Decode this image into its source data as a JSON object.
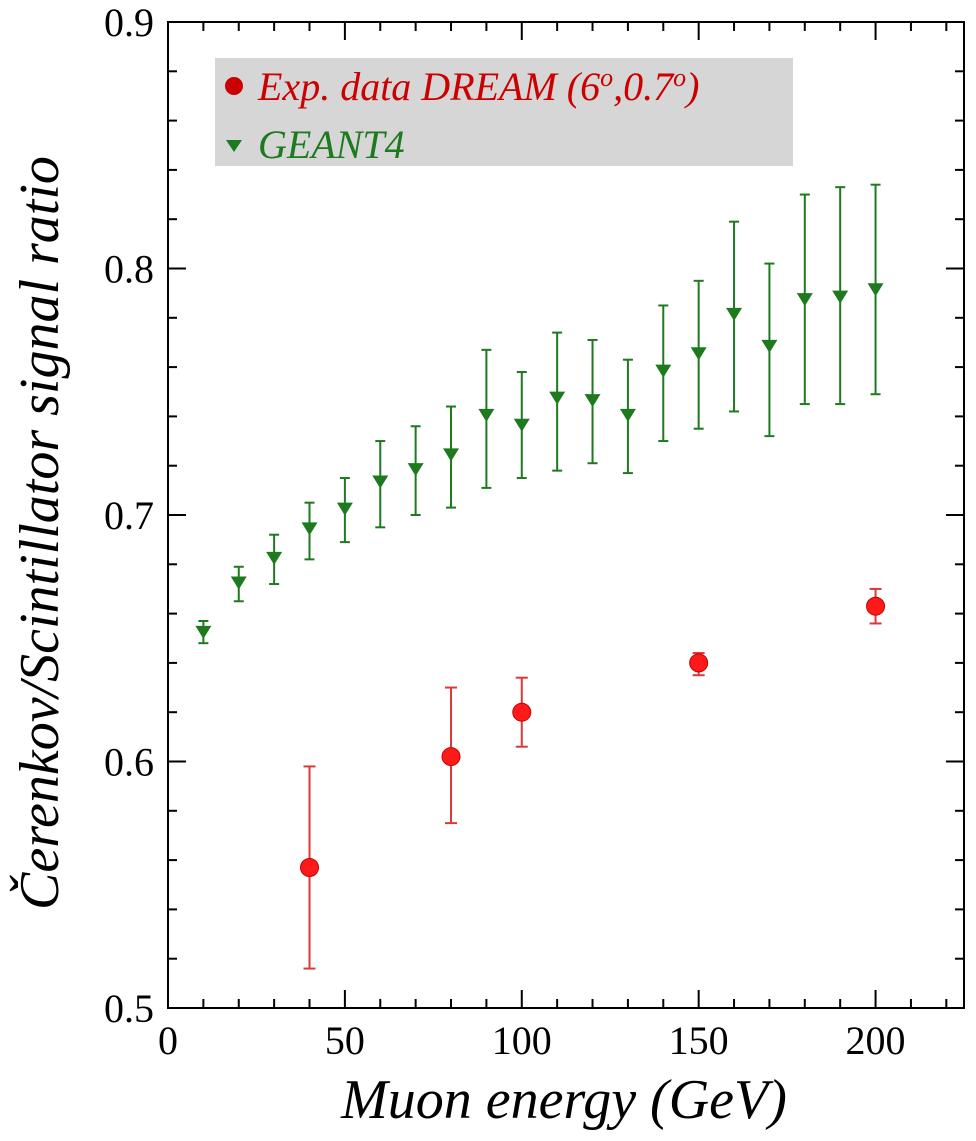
{
  "chart_data": {
    "type": "scatter",
    "xlabel": "Muon energy (GeV)",
    "ylabel": "Čerenkov/Scintillator signal ratio",
    "xlim": [
      0,
      225
    ],
    "ylim": [
      0.5,
      0.9
    ],
    "x_ticks": [
      "0",
      "50",
      "100",
      "150",
      "200"
    ],
    "y_ticks": [
      "0.5",
      "0.6",
      "0.7",
      "0.8",
      "0.9"
    ],
    "grid": false,
    "legend_position": "top-left",
    "legend_background": "#d6d6d6",
    "series": [
      {
        "name": "Exp. data DREAM (6",
        "name_sup1": "o",
        "name_mid": ",0.7",
        "name_sup2": "o",
        "name_end": ")",
        "marker": "circle",
        "color": "#ff1a1a",
        "legend_color": "#cc0000",
        "points": [
          {
            "x": 40,
            "y": 0.557,
            "err_lo": 0.516,
            "err_hi": 0.598
          },
          {
            "x": 80,
            "y": 0.602,
            "err_lo": 0.575,
            "err_hi": 0.63
          },
          {
            "x": 100,
            "y": 0.62,
            "err_lo": 0.606,
            "err_hi": 0.634
          },
          {
            "x": 150,
            "y": 0.64,
            "err_lo": 0.635,
            "err_hi": 0.644
          },
          {
            "x": 200,
            "y": 0.663,
            "err_lo": 0.656,
            "err_hi": 0.67
          }
        ]
      },
      {
        "name": "GEANT4",
        "marker": "triangle-down",
        "color": "#1e7a1e",
        "legend_color": "#1e7a1e",
        "points": [
          {
            "x": 10,
            "y": 0.653,
            "err_lo": 0.648,
            "err_hi": 0.657
          },
          {
            "x": 20,
            "y": 0.673,
            "err_lo": 0.665,
            "err_hi": 0.679
          },
          {
            "x": 30,
            "y": 0.683,
            "err_lo": 0.672,
            "err_hi": 0.692
          },
          {
            "x": 40,
            "y": 0.695,
            "err_lo": 0.682,
            "err_hi": 0.705
          },
          {
            "x": 50,
            "y": 0.703,
            "err_lo": 0.689,
            "err_hi": 0.715
          },
          {
            "x": 60,
            "y": 0.714,
            "err_lo": 0.695,
            "err_hi": 0.73
          },
          {
            "x": 70,
            "y": 0.719,
            "err_lo": 0.7,
            "err_hi": 0.736
          },
          {
            "x": 80,
            "y": 0.725,
            "err_lo": 0.703,
            "err_hi": 0.744
          },
          {
            "x": 90,
            "y": 0.741,
            "err_lo": 0.711,
            "err_hi": 0.767
          },
          {
            "x": 100,
            "y": 0.737,
            "err_lo": 0.715,
            "err_hi": 0.758
          },
          {
            "x": 110,
            "y": 0.748,
            "err_lo": 0.718,
            "err_hi": 0.774
          },
          {
            "x": 120,
            "y": 0.747,
            "err_lo": 0.721,
            "err_hi": 0.771
          },
          {
            "x": 130,
            "y": 0.741,
            "err_lo": 0.717,
            "err_hi": 0.763
          },
          {
            "x": 140,
            "y": 0.759,
            "err_lo": 0.73,
            "err_hi": 0.785
          },
          {
            "x": 150,
            "y": 0.766,
            "err_lo": 0.735,
            "err_hi": 0.795
          },
          {
            "x": 160,
            "y": 0.782,
            "err_lo": 0.742,
            "err_hi": 0.819
          },
          {
            "x": 170,
            "y": 0.769,
            "err_lo": 0.732,
            "err_hi": 0.802
          },
          {
            "x": 180,
            "y": 0.788,
            "err_lo": 0.745,
            "err_hi": 0.83
          },
          {
            "x": 190,
            "y": 0.789,
            "err_lo": 0.745,
            "err_hi": 0.833
          },
          {
            "x": 200,
            "y": 0.792,
            "err_lo": 0.749,
            "err_hi": 0.834
          }
        ]
      }
    ]
  }
}
